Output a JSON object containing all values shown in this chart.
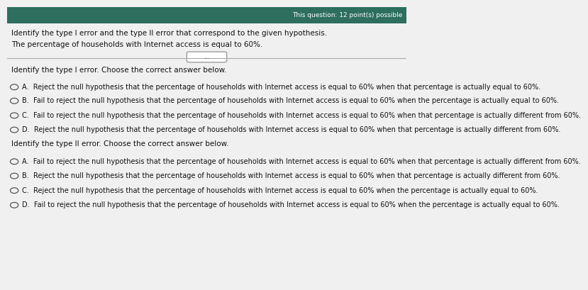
{
  "background_color": "#f0f0f0",
  "top_bar_color": "#2d6e5e",
  "top_bar_text": "This question: 12 point(s) possible",
  "header_line1": "Identify the type I error and the type II error that correspond to the given hypothesis.",
  "header_line2": "The percentage of households with Internet access is equal to 60%.",
  "divider_button_text": "...",
  "type1_header": "Identify the type I error. Choose the correct answer below.",
  "type1_options": [
    "A.  Reject the null hypothesis that the percentage of households with Internet access is equal to 60% when that percentage is actually equal to 60%.",
    "B.  Fail to reject the null hypothesis that the percentage of households with Internet access is equal to 60% when the percentage is actually equal to 60%.",
    "C.  Fail to reject the null hypothesis that the percentage of households with Internet access is equal to 60% when that percentage is actually different from 60%.",
    "D.  Reject the null hypothesis that the percentage of households with Internet access is equal to 60% when that percentage is actually different from 60%."
  ],
  "type2_header": "Identify the type II error. Choose the correct answer below.",
  "type2_options": [
    "A.  Fail to reject the null hypothesis that the percentage of households with Internet access is equal to 60% when that percentage is actually different from 60%.",
    "B.  Reject the null hypothesis that the percentage of households with Internet access is equal to 60% when that percentage is actually different from 60%.",
    "C.  Reject the null hypothesis that the percentage of households with Internet access is equal to 60% when the percentage is actually equal to 60%.",
    "D.  Fail to reject the null hypothesis that the percentage of households with Internet access is equal to 60% when the percentage is actually equal to 60%."
  ],
  "text_color": "#111111",
  "header_fontsize": 7.5,
  "option_fontsize": 7.0,
  "circle_color": "#555555"
}
